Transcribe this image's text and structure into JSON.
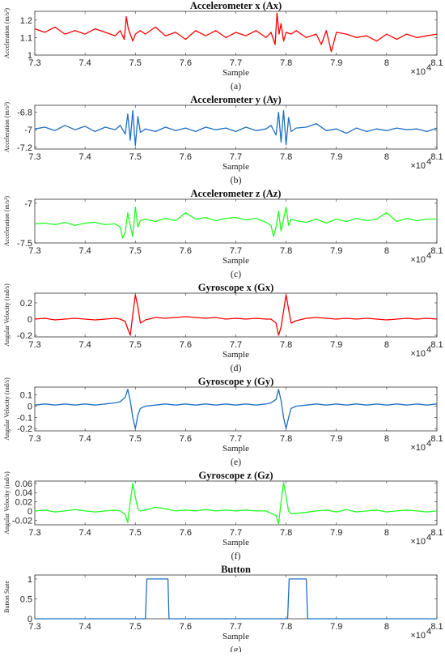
{
  "chart_data": [
    {
      "type": "line",
      "title": "Accelerometer x (Ax)",
      "xlabel": "Sample",
      "ylabel": "Acceleration (m/s²)",
      "caption": "(a)",
      "x_exponent": "×10",
      "x_exponent_power": "4",
      "xlim": [
        7.3,
        8.1
      ],
      "ylim": [
        1.0,
        1.25
      ],
      "xticks": [
        "7.3",
        "7.4",
        "7.5",
        "7.6",
        "7.7",
        "7.8",
        "7.9",
        "8",
        "8.1"
      ],
      "yticks": [
        1.0,
        1.1,
        1.2
      ],
      "ytick_labels": [
        "1",
        "1.1",
        "1.2"
      ],
      "color": "#ff0000",
      "series": [
        {
          "x": [
            7.3,
            7.32,
            7.34,
            7.36,
            7.38,
            7.4,
            7.42,
            7.44,
            7.46,
            7.47,
            7.478,
            7.482,
            7.486,
            7.49,
            7.495,
            7.5,
            7.51,
            7.52,
            7.54,
            7.56,
            7.58,
            7.6,
            7.62,
            7.64,
            7.66,
            7.68,
            7.7,
            7.72,
            7.74,
            7.76,
            7.77,
            7.778,
            7.782,
            7.786,
            7.79,
            7.795,
            7.8,
            7.81,
            7.82,
            7.84,
            7.86,
            7.87,
            7.88,
            7.89,
            7.9,
            7.92,
            7.94,
            7.96,
            7.98,
            8.0,
            8.02,
            8.04,
            8.06,
            8.08,
            8.1
          ],
          "y": [
            1.15,
            1.13,
            1.16,
            1.12,
            1.14,
            1.12,
            1.15,
            1.13,
            1.11,
            1.14,
            1.09,
            1.22,
            1.15,
            1.12,
            1.08,
            1.12,
            1.14,
            1.12,
            1.16,
            1.11,
            1.13,
            1.09,
            1.14,
            1.11,
            1.14,
            1.1,
            1.13,
            1.11,
            1.14,
            1.1,
            1.13,
            1.06,
            1.24,
            1.12,
            1.18,
            1.08,
            1.13,
            1.12,
            1.14,
            1.1,
            1.12,
            1.06,
            1.14,
            1.02,
            1.13,
            1.12,
            1.1,
            1.11,
            1.08,
            1.12,
            1.09,
            1.12,
            1.1,
            1.11,
            1.12
          ]
        }
      ]
    },
    {
      "type": "line",
      "title": "Accelerometer y (Ay)",
      "xlabel": "Sample",
      "ylabel": "Acceleration (m/s²)",
      "caption": "(b)",
      "x_exponent": "×10",
      "x_exponent_power": "4",
      "xlim": [
        7.3,
        8.1
      ],
      "ylim": [
        -7.22,
        -6.72
      ],
      "xticks": [
        "7.3",
        "7.4",
        "7.5",
        "7.6",
        "7.7",
        "7.8",
        "7.9",
        "8",
        "8.1"
      ],
      "yticks": [
        -7.2,
        -7.0,
        -6.8
      ],
      "ytick_labels": [
        "-7.2",
        "-7",
        "-6.8"
      ],
      "color": "#1f6fc0",
      "series": [
        {
          "x": [
            7.3,
            7.32,
            7.34,
            7.36,
            7.38,
            7.4,
            7.42,
            7.44,
            7.46,
            7.47,
            7.48,
            7.485,
            7.49,
            7.495,
            7.5,
            7.505,
            7.51,
            7.52,
            7.54,
            7.56,
            7.58,
            7.6,
            7.62,
            7.64,
            7.66,
            7.68,
            7.7,
            7.72,
            7.74,
            7.76,
            7.77,
            7.78,
            7.785,
            7.79,
            7.795,
            7.8,
            7.805,
            7.81,
            7.82,
            7.84,
            7.86,
            7.88,
            7.9,
            7.92,
            7.94,
            7.96,
            7.98,
            8.0,
            8.02,
            8.04,
            8.06,
            8.08,
            8.1
          ],
          "y": [
            -6.99,
            -6.97,
            -7.01,
            -6.95,
            -7.0,
            -6.96,
            -7.02,
            -6.97,
            -7.0,
            -6.95,
            -7.05,
            -6.82,
            -7.12,
            -6.78,
            -7.18,
            -6.85,
            -7.03,
            -6.99,
            -7.02,
            -6.97,
            -7.01,
            -6.98,
            -7.02,
            -6.97,
            -7.0,
            -6.98,
            -7.02,
            -6.97,
            -7.01,
            -6.99,
            -6.95,
            -7.06,
            -6.8,
            -7.14,
            -6.78,
            -7.17,
            -6.86,
            -7.02,
            -6.98,
            -6.97,
            -6.93,
            -7.01,
            -6.99,
            -7.04,
            -6.98,
            -7.02,
            -6.99,
            -7.01,
            -6.98,
            -7.0,
            -6.99,
            -7.02,
            -6.98
          ]
        }
      ]
    },
    {
      "type": "line",
      "title": "Accelerometer z (Az)",
      "xlabel": "Sample",
      "ylabel": "Acceleration (m/s²)",
      "caption": "(c)",
      "x_exponent": "×10",
      "x_exponent_power": "4",
      "xlim": [
        7.3,
        8.1
      ],
      "ylim": [
        -7.5,
        -6.95
      ],
      "xticks": [
        "7.3",
        "7.4",
        "7.5",
        "7.6",
        "7.7",
        "7.8",
        "7.9",
        "8",
        "8.1"
      ],
      "yticks": [
        -7.5,
        -7.0
      ],
      "ytick_labels": [
        "-7.5",
        "-7"
      ],
      "color": "#22ff22",
      "series": [
        {
          "x": [
            7.3,
            7.32,
            7.34,
            7.36,
            7.38,
            7.4,
            7.42,
            7.44,
            7.46,
            7.47,
            7.475,
            7.48,
            7.485,
            7.49,
            7.495,
            7.5,
            7.505,
            7.51,
            7.52,
            7.54,
            7.56,
            7.58,
            7.6,
            7.62,
            7.64,
            7.66,
            7.68,
            7.7,
            7.72,
            7.74,
            7.76,
            7.77,
            7.775,
            7.78,
            7.785,
            7.79,
            7.795,
            7.8,
            7.805,
            7.81,
            7.82,
            7.84,
            7.86,
            7.88,
            7.9,
            7.92,
            7.94,
            7.96,
            7.98,
            8.0,
            8.02,
            8.04,
            8.06,
            8.08,
            8.1
          ],
          "y": [
            -7.26,
            -7.25,
            -7.27,
            -7.24,
            -7.28,
            -7.25,
            -7.24,
            -7.27,
            -7.26,
            -7.3,
            -7.44,
            -7.36,
            -7.12,
            -7.28,
            -7.42,
            -7.05,
            -7.3,
            -7.22,
            -7.2,
            -7.23,
            -7.19,
            -7.22,
            -7.12,
            -7.2,
            -7.18,
            -7.22,
            -7.19,
            -7.18,
            -7.21,
            -7.19,
            -7.24,
            -7.28,
            -7.42,
            -7.3,
            -7.1,
            -7.35,
            -7.2,
            -7.05,
            -7.28,
            -7.2,
            -7.22,
            -7.24,
            -7.2,
            -7.25,
            -7.2,
            -7.23,
            -7.19,
            -7.22,
            -7.2,
            -7.12,
            -7.23,
            -7.19,
            -7.22,
            -7.2,
            -7.2
          ]
        }
      ]
    },
    {
      "type": "line",
      "title": "Gyroscope x (Gx)",
      "xlabel": "Sample",
      "ylabel": "Angular Velocity (rad/s)",
      "caption": "(d)",
      "x_exponent": "×10",
      "x_exponent_power": "4",
      "xlim": [
        7.3,
        8.1
      ],
      "ylim": [
        -0.22,
        0.32
      ],
      "xticks": [
        "7.3",
        "7.4",
        "7.5",
        "7.6",
        "7.7",
        "7.8",
        "7.9",
        "8",
        "8.1"
      ],
      "yticks": [
        -0.2,
        0,
        0.2
      ],
      "ytick_labels": [
        "-0.2",
        "0",
        "0.2"
      ],
      "color": "#ff0000",
      "series": [
        {
          "x": [
            7.3,
            7.32,
            7.34,
            7.36,
            7.38,
            7.4,
            7.42,
            7.44,
            7.46,
            7.47,
            7.48,
            7.485,
            7.49,
            7.495,
            7.5,
            7.505,
            7.51,
            7.52,
            7.54,
            7.56,
            7.58,
            7.6,
            7.62,
            7.64,
            7.66,
            7.68,
            7.7,
            7.72,
            7.74,
            7.76,
            7.77,
            7.78,
            7.785,
            7.79,
            7.795,
            7.8,
            7.805,
            7.81,
            7.82,
            7.84,
            7.86,
            7.88,
            7.9,
            7.92,
            7.94,
            7.96,
            7.98,
            8.0,
            8.02,
            8.04,
            8.06,
            8.08,
            8.1
          ],
          "y": [
            0.0,
            0.01,
            -0.01,
            0.0,
            0.01,
            0.0,
            -0.01,
            0.0,
            0.01,
            0.0,
            -0.03,
            -0.12,
            -0.2,
            0.05,
            0.3,
            0.15,
            -0.05,
            -0.01,
            0.02,
            0.01,
            0.02,
            0.03,
            0.02,
            0.01,
            0.02,
            0.0,
            0.01,
            0.0,
            0.01,
            0.0,
            0.0,
            -0.05,
            -0.2,
            -0.1,
            0.1,
            0.3,
            0.12,
            -0.05,
            -0.02,
            0.01,
            0.02,
            0.01,
            0.0,
            0.01,
            0.0,
            0.01,
            0.0,
            -0.01,
            0.0,
            0.01,
            0.0,
            0.01,
            0.0
          ]
        }
      ]
    },
    {
      "type": "line",
      "title": "Gyroscope y (Gy)",
      "xlabel": "Sample",
      "ylabel": "Angular Velocity (rad/s)",
      "caption": "(e)",
      "x_exponent": "×10",
      "x_exponent_power": "4",
      "xlim": [
        7.3,
        8.1
      ],
      "ylim": [
        -0.22,
        0.17
      ],
      "xticks": [
        "7.3",
        "7.4",
        "7.5",
        "7.6",
        "7.7",
        "7.8",
        "7.9",
        "8",
        "8.1"
      ],
      "yticks": [
        -0.2,
        -0.1,
        0,
        0.1
      ],
      "ytick_labels": [
        "-0.2",
        "-0.1",
        "0",
        "0.1"
      ],
      "color": "#1f6fc0",
      "series": [
        {
          "x": [
            7.3,
            7.32,
            7.34,
            7.36,
            7.38,
            7.4,
            7.42,
            7.44,
            7.46,
            7.47,
            7.48,
            7.485,
            7.49,
            7.495,
            7.5,
            7.505,
            7.51,
            7.52,
            7.54,
            7.56,
            7.58,
            7.6,
            7.62,
            7.64,
            7.66,
            7.68,
            7.7,
            7.72,
            7.74,
            7.76,
            7.77,
            7.78,
            7.785,
            7.79,
            7.795,
            7.8,
            7.805,
            7.81,
            7.82,
            7.84,
            7.86,
            7.88,
            7.9,
            7.92,
            7.94,
            7.96,
            7.98,
            8.0,
            8.02,
            8.04,
            8.06,
            8.08,
            8.1
          ],
          "y": [
            0.01,
            0.02,
            0.01,
            0.02,
            0.01,
            0.02,
            0.01,
            0.02,
            0.03,
            0.04,
            0.08,
            0.15,
            0.05,
            -0.1,
            -0.2,
            -0.08,
            -0.02,
            0.0,
            0.01,
            0.02,
            0.01,
            0.02,
            0.01,
            0.02,
            0.01,
            0.02,
            0.01,
            0.02,
            0.01,
            0.02,
            0.03,
            0.06,
            0.15,
            0.05,
            -0.1,
            -0.2,
            -0.1,
            -0.02,
            0.0,
            0.01,
            0.02,
            0.01,
            0.02,
            0.01,
            0.02,
            0.01,
            0.02,
            0.01,
            0.02,
            0.01,
            0.02,
            0.01,
            0.02
          ]
        }
      ]
    },
    {
      "type": "line",
      "title": "Gyroscope z (Gz)",
      "xlabel": "Sample",
      "ylabel": "Angular Velocity (rad/s)",
      "caption": "(f)",
      "x_exponent": "×10",
      "x_exponent_power": "4",
      "xlim": [
        7.3,
        8.1
      ],
      "ylim": [
        -0.03,
        0.065
      ],
      "xticks": [
        "7.3",
        "7.4",
        "7.5",
        "7.6",
        "7.7",
        "7.8",
        "7.9",
        "8",
        "8.1"
      ],
      "yticks": [
        -0.02,
        0,
        0.02,
        0.04,
        0.06
      ],
      "ytick_labels": [
        "-0.02",
        "0",
        "0.02",
        "0.04",
        "0.06"
      ],
      "color": "#22ff22",
      "series": [
        {
          "x": [
            7.3,
            7.32,
            7.34,
            7.36,
            7.38,
            7.4,
            7.42,
            7.44,
            7.46,
            7.47,
            7.48,
            7.485,
            7.49,
            7.495,
            7.5,
            7.505,
            7.51,
            7.52,
            7.54,
            7.56,
            7.58,
            7.6,
            7.62,
            7.64,
            7.66,
            7.68,
            7.7,
            7.72,
            7.74,
            7.76,
            7.77,
            7.78,
            7.785,
            7.79,
            7.795,
            7.8,
            7.805,
            7.81,
            7.82,
            7.84,
            7.86,
            7.88,
            7.9,
            7.92,
            7.94,
            7.96,
            7.98,
            8.0,
            8.02,
            8.04,
            8.06,
            8.08,
            8.1
          ],
          "y": [
            0.0,
            0.002,
            -0.002,
            0.0,
            0.003,
            0.0,
            -0.002,
            0.0,
            0.002,
            0.0,
            -0.008,
            -0.025,
            0.02,
            0.06,
            0.03,
            0.005,
            0.0,
            0.002,
            0.008,
            0.005,
            0.0,
            0.002,
            0.0,
            0.003,
            0.0,
            0.002,
            0.0,
            0.002,
            0.0,
            0.0,
            -0.005,
            -0.01,
            -0.028,
            0.02,
            0.062,
            0.03,
            0.0,
            -0.006,
            -0.005,
            -0.003,
            0.0,
            0.002,
            -0.002,
            0.003,
            -0.002,
            0.0,
            0.002,
            -0.002,
            0.0,
            0.002,
            0.0,
            -0.002,
            0.0
          ]
        }
      ]
    },
    {
      "type": "line",
      "title": "Button",
      "xlabel": "Sample",
      "ylabel": "Button State",
      "caption": "(g)",
      "x_exponent": "×10",
      "x_exponent_power": "4",
      "xlim": [
        7.3,
        8.1
      ],
      "ylim": [
        0,
        1.1
      ],
      "xticks": [
        "7.3",
        "7.4",
        "7.5",
        "7.6",
        "7.7",
        "7.8",
        "7.9",
        "8",
        "8.1"
      ],
      "yticks": [
        0,
        0.5,
        1
      ],
      "ytick_labels": [
        "0",
        "0.5",
        "1"
      ],
      "color": "#1f6fc0",
      "series": [
        {
          "x": [
            7.3,
            7.52,
            7.523,
            7.565,
            7.567,
            7.803,
            7.806,
            7.84,
            7.843,
            8.1
          ],
          "y": [
            0,
            0,
            1,
            1,
            0,
            0,
            1,
            1,
            0,
            0
          ]
        }
      ]
    }
  ]
}
